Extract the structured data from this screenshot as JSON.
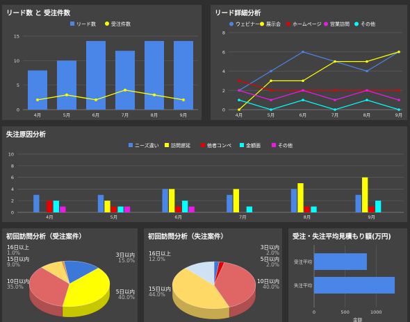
{
  "colors": {
    "blue": "#4a86e8",
    "yellow": "#ffff00",
    "red": "#e60000",
    "cyan": "#00ffff",
    "magenta": "#e81ce8",
    "gold": "#ffd966",
    "salmon": "#e06666",
    "pieblue": "#3c78d8",
    "lightblue": "#cfe2f3",
    "orange": "#e69138"
  },
  "charts": {
    "lead_orders": {
      "title": "リード数 と 受注件数",
      "legend": [
        "リード数",
        "受注件数"
      ]
    },
    "lead_detail": {
      "title": "リード詳細分析",
      "legend": [
        "ウェビナー",
        "展示会",
        "ホームページ",
        "営業訪問",
        "その他"
      ]
    },
    "loss_reason": {
      "title": "失注原因分析",
      "legend": [
        "ニーズ違い",
        "訪問遅延",
        "他者コンペ",
        "金額面",
        "その他"
      ]
    },
    "pie_won": {
      "title": "初回訪問分析（受注案件）",
      "labels": [
        {
          "name": "16日以上",
          "pct": "1.0%"
        },
        {
          "name": "15日以内",
          "pct": "9.0%"
        },
        {
          "name": "10日以内",
          "pct": "35.0%"
        },
        {
          "name": "3日以内",
          "pct": "15.0%"
        },
        {
          "name": "5日以内",
          "pct": "40.0%"
        }
      ]
    },
    "pie_lost": {
      "title": "初回訪問分析（失注案件）",
      "labels": [
        {
          "name": "16日以上",
          "pct": "12.0%"
        },
        {
          "name": "15日以内",
          "pct": "44.0%"
        },
        {
          "name": "3日以内",
          "pct": "2.0%"
        },
        {
          "name": "5日以内",
          "pct": "2.0%"
        },
        {
          "name": "10日以内",
          "pct": "40.0%"
        }
      ]
    },
    "avg_amount": {
      "title": "受注・失注平均見積もり額(万円)",
      "xlabel": "金額"
    }
  },
  "chart_data": [
    {
      "type": "bar",
      "title": "リード数 と 受注件数",
      "categories": [
        "4月",
        "5月",
        "6月",
        "7月",
        "8月",
        "9月"
      ],
      "series": [
        {
          "name": "リード数",
          "type": "bar",
          "values": [
            8,
            10,
            14,
            12,
            14,
            14
          ]
        },
        {
          "name": "受注件数",
          "type": "line",
          "values": [
            2,
            3,
            2,
            4,
            3,
            2
          ]
        }
      ],
      "ylim": [
        0,
        15
      ],
      "yticks": [
        0,
        5,
        10,
        15
      ],
      "legend": "top-center"
    },
    {
      "type": "line",
      "title": "リード詳細分析",
      "categories": [
        "4月",
        "5月",
        "6月",
        "7月",
        "8月",
        "9月"
      ],
      "series": [
        {
          "name": "ウェビナー",
          "values": [
            2,
            4,
            6,
            5,
            4,
            6
          ]
        },
        {
          "name": "展示会",
          "values": [
            0,
            3,
            3,
            5,
            5,
            6
          ]
        },
        {
          "name": "ホームページ",
          "values": [
            3,
            2,
            2,
            2,
            2,
            2
          ]
        },
        {
          "name": "営業訪問",
          "values": [
            2,
            1,
            2,
            1,
            2,
            1
          ]
        },
        {
          "name": "その他",
          "values": [
            1,
            0,
            1,
            0,
            1,
            0
          ]
        }
      ],
      "ylim": [
        0,
        8
      ],
      "yticks": [
        0,
        2,
        4,
        6,
        8
      ],
      "legend": "top-left"
    },
    {
      "type": "bar",
      "title": "失注原因分析",
      "categories": [
        "4月",
        "5月",
        "6月",
        "7月",
        "8月",
        "9月"
      ],
      "series": [
        {
          "name": "ニーズ違い",
          "values": [
            3,
            3,
            4,
            3,
            4,
            3
          ]
        },
        {
          "name": "訪問遅延",
          "values": [
            0,
            2,
            4,
            4,
            5,
            6
          ]
        },
        {
          "name": "他者コンペ",
          "values": [
            2,
            1,
            1,
            0,
            1,
            1
          ]
        },
        {
          "name": "金額面",
          "values": [
            2,
            1,
            2,
            1,
            1,
            2
          ]
        },
        {
          "name": "その他",
          "values": [
            1,
            1,
            1,
            0,
            0,
            0
          ]
        }
      ],
      "ylim": [
        0,
        10
      ],
      "yticks": [
        0,
        2,
        4,
        6,
        8,
        10
      ],
      "legend": "top-center"
    },
    {
      "type": "pie",
      "title": "初回訪問分析（受注案件）",
      "slices": [
        {
          "label": "3日以内",
          "value": 15.0
        },
        {
          "label": "5日以内",
          "value": 40.0
        },
        {
          "label": "10日以内",
          "value": 35.0
        },
        {
          "label": "15日以内",
          "value": 9.0
        },
        {
          "label": "16日以上",
          "value": 1.0
        }
      ]
    },
    {
      "type": "pie",
      "title": "初回訪問分析（失注案件）",
      "slices": [
        {
          "label": "3日以内",
          "value": 2.0
        },
        {
          "label": "5日以内",
          "value": 2.0
        },
        {
          "label": "10日以内",
          "value": 40.0
        },
        {
          "label": "15日以内",
          "value": 44.0
        },
        {
          "label": "16日以上",
          "value": 12.0
        }
      ]
    },
    {
      "type": "bar",
      "orientation": "horizontal",
      "title": "受注・失注平均見積もり額(万円)",
      "categories": [
        "受注平均",
        "失注平均"
      ],
      "values": [
        850,
        1300
      ],
      "xlabel": "金額",
      "xlim": [
        0,
        1400
      ],
      "xticks": [
        0,
        500,
        1000
      ]
    }
  ]
}
